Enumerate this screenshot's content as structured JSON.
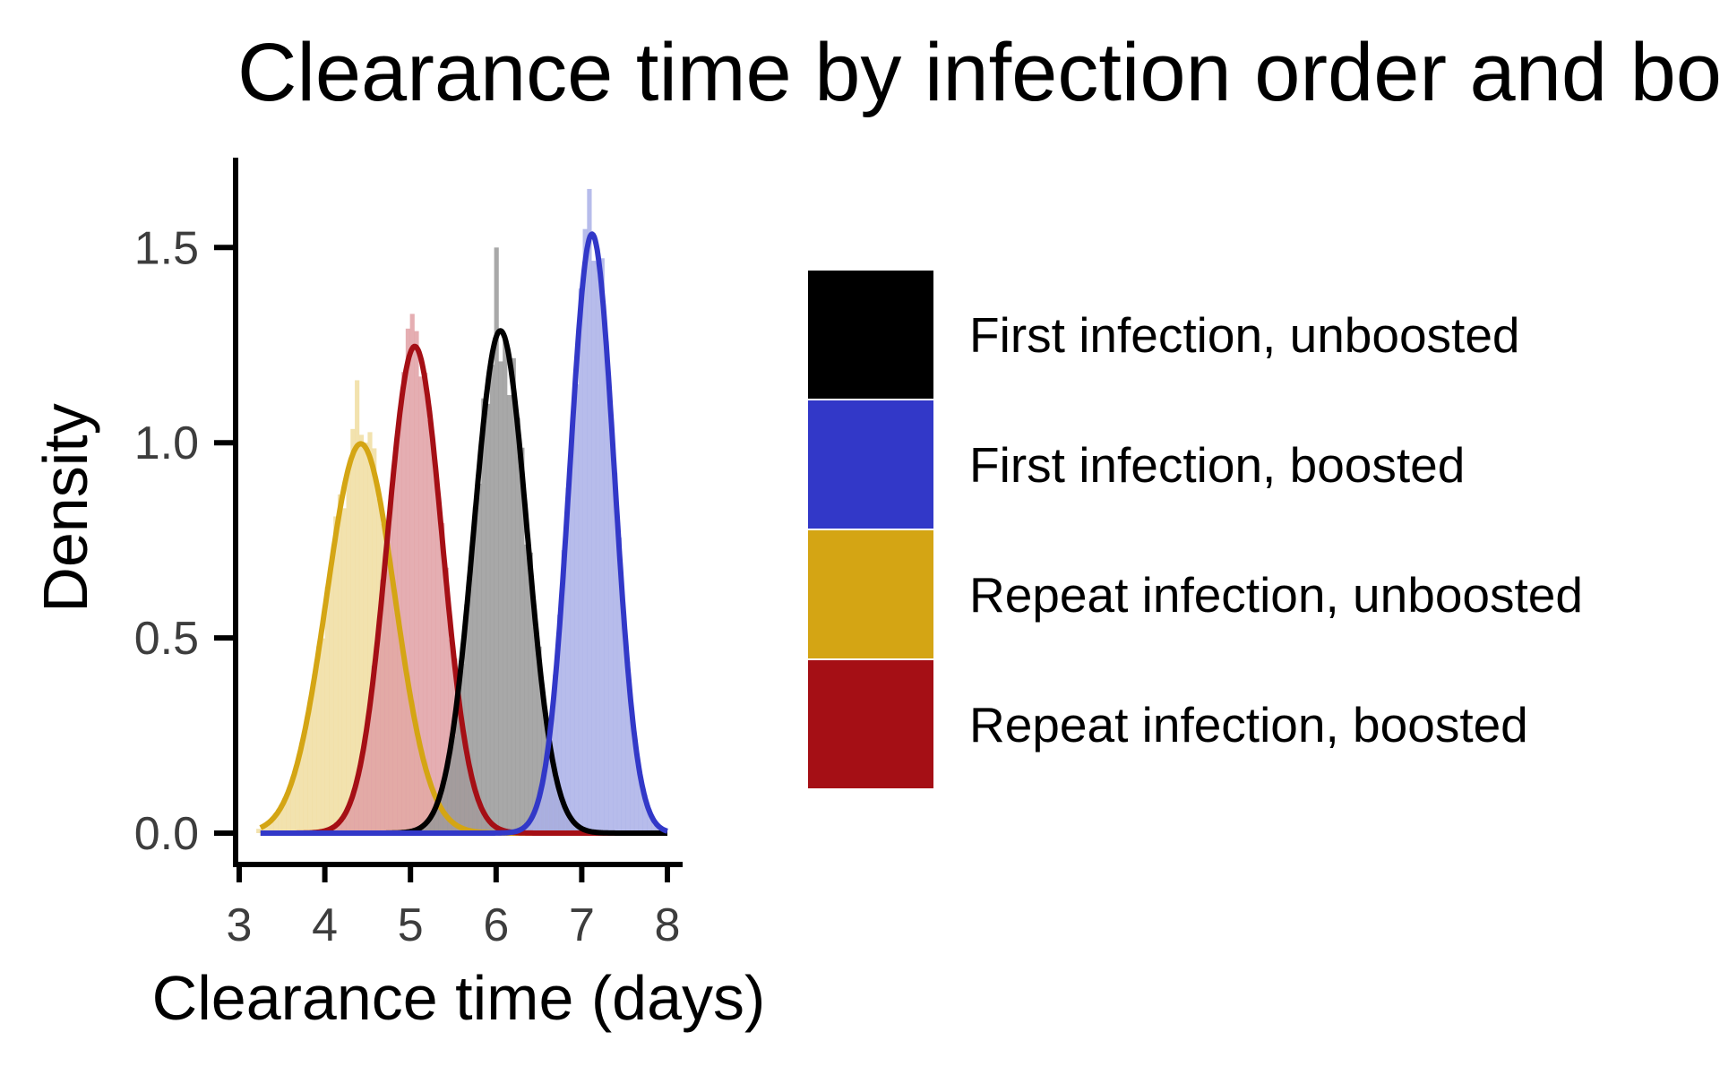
{
  "chart_data": {
    "type": "area",
    "title": "Clearance time by infection order and boo",
    "xlabel": "Clearance time (days)",
    "ylabel": "Density",
    "xlim": [
      3,
      8
    ],
    "ylim": [
      0,
      1.75
    ],
    "xticks": [
      "3",
      "4",
      "5",
      "6",
      "7",
      "8"
    ],
    "yticks": [
      "0.0",
      "0.5",
      "1.0",
      "1.5"
    ],
    "grid": false,
    "legend_position": "right",
    "histogram_bin_width": 0.05,
    "series": [
      {
        "name": "First infection, unboosted",
        "color": "#000000",
        "fill": "#999999",
        "curve": {
          "mean": 6.05,
          "sd": 0.31,
          "x_range": [
            3.25,
            8.0
          ]
        },
        "histogram_peak": 1.5
      },
      {
        "name": "First infection, boosted",
        "color": "#3238c8",
        "fill": "#aab0e8",
        "curve": {
          "mean": 7.12,
          "sd": 0.26,
          "x_range": [
            3.25,
            8.0
          ]
        },
        "histogram_peak": 1.65
      },
      {
        "name": "Repeat infection, unboosted",
        "color": "#d4a514",
        "fill": "#f0dda0",
        "curve": {
          "mean": 4.42,
          "sd": 0.4,
          "x_range": [
            3.25,
            8.0
          ]
        },
        "histogram_peak": 1.16
      },
      {
        "name": "Repeat infection, boosted",
        "color": "#a50f15",
        "fill": "#e0a0a5",
        "curve": {
          "mean": 5.05,
          "sd": 0.32,
          "x_range": [
            3.25,
            8.0
          ]
        },
        "histogram_peak": 1.33
      }
    ]
  }
}
